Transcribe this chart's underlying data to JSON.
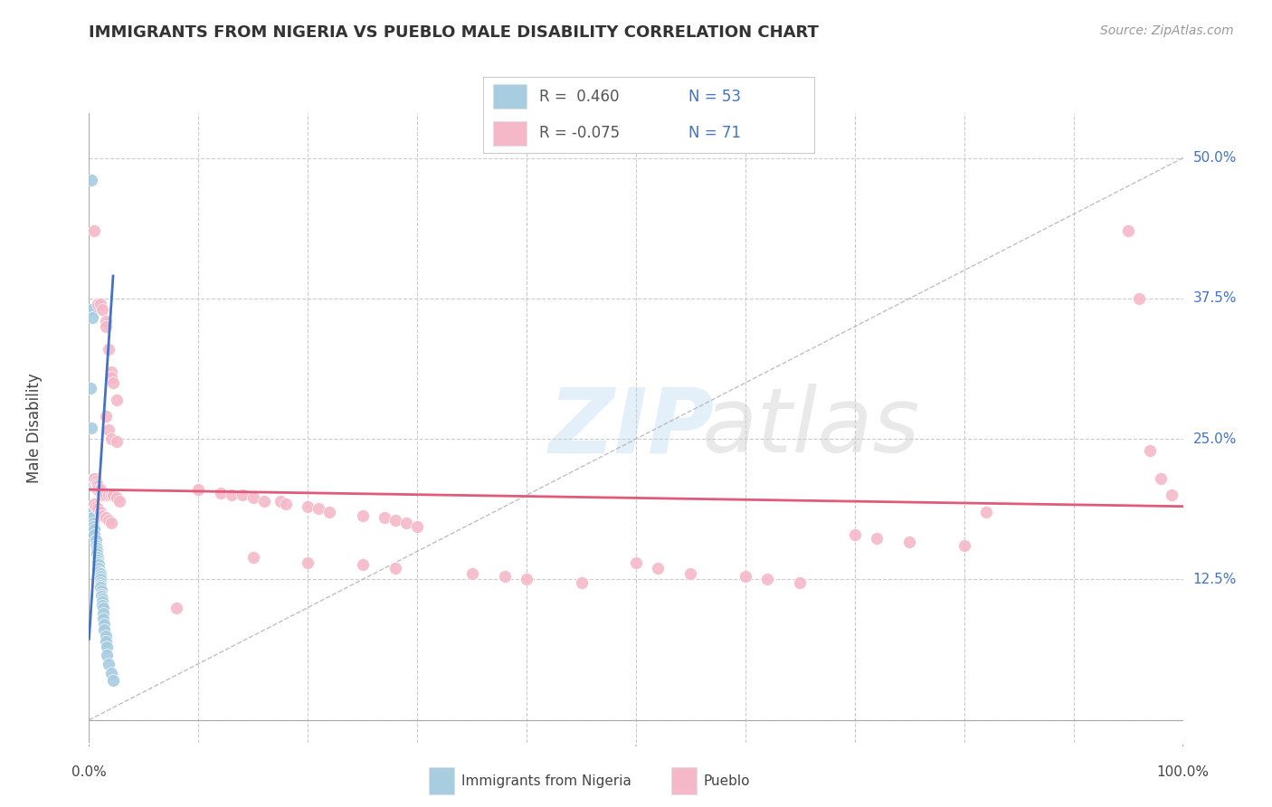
{
  "title": "IMMIGRANTS FROM NIGERIA VS PUEBLO MALE DISABILITY CORRELATION CHART",
  "source": "Source: ZipAtlas.com",
  "ylabel": "Male Disability",
  "color_blue": "#a8cce0",
  "color_pink": "#f4b8c8",
  "color_blue_line": "#4472c4",
  "color_pink_line": "#e05a7a",
  "color_diag": "#b0b0b0",
  "xlim": [
    0.0,
    1.0
  ],
  "ylim": [
    -0.02,
    0.54
  ],
  "ytick_vals": [
    0.0,
    0.125,
    0.25,
    0.375,
    0.5
  ],
  "ytick_labels": [
    "0.0%",
    "12.5%",
    "25.0%",
    "37.5%",
    "50.0%"
  ],
  "nigeria_points": [
    [
      0.0018,
      0.48
    ],
    [
      0.002,
      0.365
    ],
    [
      0.003,
      0.358
    ],
    [
      0.001,
      0.295
    ],
    [
      0.002,
      0.26
    ],
    [
      0.004,
      0.215
    ],
    [
      0.004,
      0.212
    ],
    [
      0.004,
      0.208
    ],
    [
      0.005,
      0.21
    ],
    [
      0.005,
      0.215
    ],
    [
      0.006,
      0.21
    ],
    [
      0.002,
      0.19
    ],
    [
      0.003,
      0.185
    ],
    [
      0.003,
      0.18
    ],
    [
      0.004,
      0.175
    ],
    [
      0.004,
      0.172
    ],
    [
      0.005,
      0.17
    ],
    [
      0.005,
      0.165
    ],
    [
      0.006,
      0.16
    ],
    [
      0.006,
      0.155
    ],
    [
      0.007,
      0.153
    ],
    [
      0.007,
      0.15
    ],
    [
      0.007,
      0.148
    ],
    [
      0.008,
      0.145
    ],
    [
      0.008,
      0.142
    ],
    [
      0.008,
      0.14
    ],
    [
      0.009,
      0.138
    ],
    [
      0.009,
      0.135
    ],
    [
      0.009,
      0.132
    ],
    [
      0.01,
      0.13
    ],
    [
      0.01,
      0.128
    ],
    [
      0.01,
      0.125
    ],
    [
      0.01,
      0.122
    ],
    [
      0.01,
      0.12
    ],
    [
      0.01,
      0.118
    ],
    [
      0.011,
      0.115
    ],
    [
      0.011,
      0.112
    ],
    [
      0.011,
      0.11
    ],
    [
      0.012,
      0.108
    ],
    [
      0.012,
      0.105
    ],
    [
      0.012,
      0.102
    ],
    [
      0.013,
      0.1
    ],
    [
      0.013,
      0.095
    ],
    [
      0.013,
      0.09
    ],
    [
      0.014,
      0.085
    ],
    [
      0.014,
      0.08
    ],
    [
      0.015,
      0.075
    ],
    [
      0.015,
      0.07
    ],
    [
      0.016,
      0.065
    ],
    [
      0.016,
      0.058
    ],
    [
      0.018,
      0.05
    ],
    [
      0.02,
      0.042
    ],
    [
      0.022,
      0.035
    ]
  ],
  "pueblo_points": [
    [
      0.005,
      0.435
    ],
    [
      0.008,
      0.37
    ],
    [
      0.01,
      0.37
    ],
    [
      0.012,
      0.365
    ],
    [
      0.015,
      0.355
    ],
    [
      0.015,
      0.35
    ],
    [
      0.018,
      0.33
    ],
    [
      0.02,
      0.31
    ],
    [
      0.02,
      0.305
    ],
    [
      0.022,
      0.3
    ],
    [
      0.025,
      0.285
    ],
    [
      0.015,
      0.27
    ],
    [
      0.018,
      0.258
    ],
    [
      0.02,
      0.25
    ],
    [
      0.025,
      0.248
    ],
    [
      0.005,
      0.215
    ],
    [
      0.006,
      0.212
    ],
    [
      0.007,
      0.21
    ],
    [
      0.008,
      0.208
    ],
    [
      0.008,
      0.205
    ],
    [
      0.01,
      0.205
    ],
    [
      0.012,
      0.2
    ],
    [
      0.015,
      0.2
    ],
    [
      0.018,
      0.2
    ],
    [
      0.02,
      0.2
    ],
    [
      0.022,
      0.2
    ],
    [
      0.025,
      0.198
    ],
    [
      0.028,
      0.195
    ],
    [
      0.005,
      0.192
    ],
    [
      0.006,
      0.19
    ],
    [
      0.008,
      0.188
    ],
    [
      0.01,
      0.185
    ],
    [
      0.012,
      0.182
    ],
    [
      0.015,
      0.18
    ],
    [
      0.018,
      0.178
    ],
    [
      0.02,
      0.175
    ],
    [
      0.1,
      0.205
    ],
    [
      0.12,
      0.202
    ],
    [
      0.13,
      0.2
    ],
    [
      0.14,
      0.2
    ],
    [
      0.15,
      0.198
    ],
    [
      0.16,
      0.195
    ],
    [
      0.175,
      0.195
    ],
    [
      0.18,
      0.192
    ],
    [
      0.2,
      0.19
    ],
    [
      0.21,
      0.188
    ],
    [
      0.22,
      0.185
    ],
    [
      0.25,
      0.182
    ],
    [
      0.27,
      0.18
    ],
    [
      0.28,
      0.178
    ],
    [
      0.29,
      0.175
    ],
    [
      0.3,
      0.172
    ],
    [
      0.15,
      0.145
    ],
    [
      0.2,
      0.14
    ],
    [
      0.25,
      0.138
    ],
    [
      0.28,
      0.135
    ],
    [
      0.35,
      0.13
    ],
    [
      0.38,
      0.128
    ],
    [
      0.4,
      0.125
    ],
    [
      0.45,
      0.122
    ],
    [
      0.5,
      0.14
    ],
    [
      0.52,
      0.135
    ],
    [
      0.55,
      0.13
    ],
    [
      0.6,
      0.128
    ],
    [
      0.62,
      0.125
    ],
    [
      0.65,
      0.122
    ],
    [
      0.7,
      0.165
    ],
    [
      0.72,
      0.162
    ],
    [
      0.75,
      0.158
    ],
    [
      0.8,
      0.155
    ],
    [
      0.82,
      0.185
    ],
    [
      0.08,
      0.1
    ],
    [
      0.95,
      0.435
    ],
    [
      0.96,
      0.375
    ],
    [
      0.97,
      0.24
    ],
    [
      0.98,
      0.215
    ],
    [
      0.99,
      0.2
    ]
  ],
  "blue_line": [
    [
      0.0,
      0.072
    ],
    [
      0.022,
      0.395
    ]
  ],
  "pink_line": [
    [
      0.0,
      0.205
    ],
    [
      1.0,
      0.19
    ]
  ],
  "diag_line": [
    [
      0.0,
      0.0
    ],
    [
      1.0,
      0.5
    ]
  ]
}
